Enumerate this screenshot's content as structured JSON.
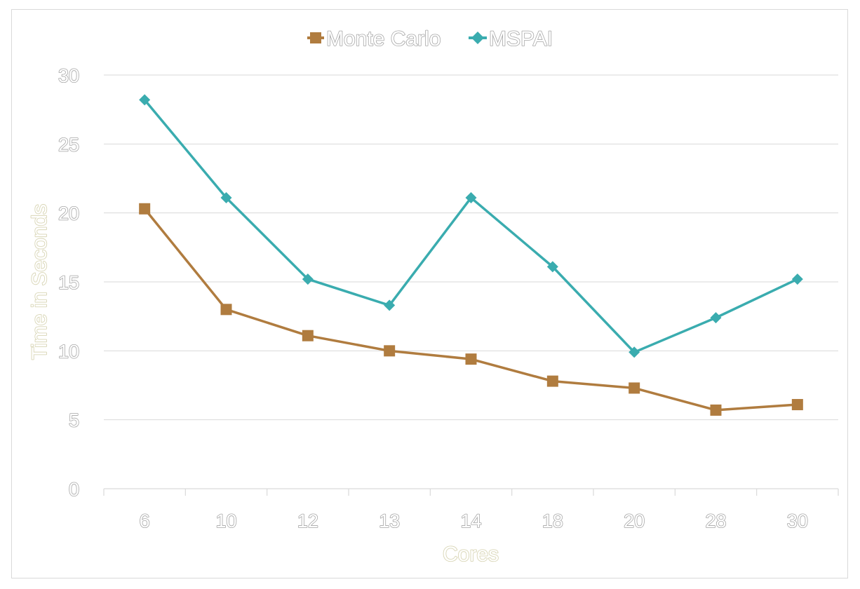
{
  "chart_data": {
    "type": "line",
    "categories": [
      "6",
      "10",
      "12",
      "13",
      "14",
      "18",
      "20",
      "28",
      "30"
    ],
    "series": [
      {
        "name": "Monte Carlo",
        "color": "#b07c3f",
        "marker": "square",
        "values": [
          20.3,
          13.0,
          11.1,
          10.0,
          9.4,
          7.8,
          7.3,
          5.7,
          6.1
        ]
      },
      {
        "name": "MSPAI",
        "color": "#3aacaf",
        "marker": "diamond",
        "values": [
          28.2,
          21.1,
          15.2,
          13.3,
          21.1,
          16.1,
          9.9,
          12.4,
          15.2
        ]
      }
    ],
    "xlabel": "Cores",
    "ylabel": "Time in Seconds",
    "ylim": [
      0,
      30
    ],
    "yticks": [
      "0",
      "5",
      "10",
      "15",
      "20",
      "25",
      "30"
    ],
    "grid": true,
    "legend_position": "top-center"
  }
}
